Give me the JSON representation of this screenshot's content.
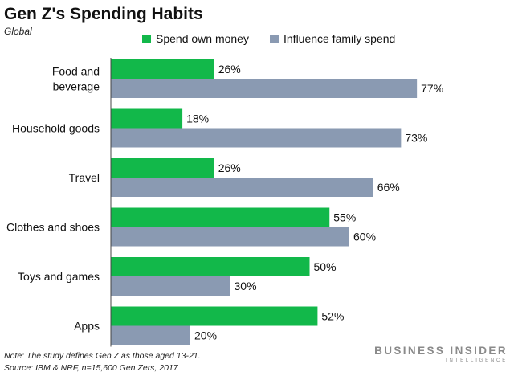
{
  "header": {
    "title": "Gen Z's Spending Habits",
    "subtitle": "Global"
  },
  "legend": {
    "items": [
      {
        "label": "Spend own money",
        "color": "#12b84a"
      },
      {
        "label": "Influence family spend",
        "color": "#8a9ab2"
      }
    ]
  },
  "chart_data": {
    "type": "bar",
    "orientation": "horizontal",
    "title": "Gen Z's Spending Habits",
    "subtitle": "Global",
    "categories": [
      [
        "Food and",
        "beverage"
      ],
      [
        "Household goods"
      ],
      [
        "Travel"
      ],
      [
        "Clothes and shoes"
      ],
      [
        "Toys and games"
      ],
      [
        "Apps"
      ]
    ],
    "series": [
      {
        "name": "Spend own money",
        "color": "#12b84a",
        "values": [
          26,
          18,
          26,
          55,
          50,
          52
        ]
      },
      {
        "name": "Influence family spend",
        "color": "#8a9ab2",
        "values": [
          77,
          73,
          66,
          60,
          30,
          20
        ]
      }
    ],
    "value_suffix": "%",
    "xlim": [
      0,
      100
    ],
    "grid": false,
    "legend_position": "top"
  },
  "footer": {
    "note": "Note: The study defines Gen Z as those aged 13-21.",
    "source": "Source: IBM & NRF, n=15,600 Gen Zers, 2017"
  },
  "brand": {
    "line1": "BUSINESS INSIDER",
    "line2": "INTELLIGENCE"
  }
}
